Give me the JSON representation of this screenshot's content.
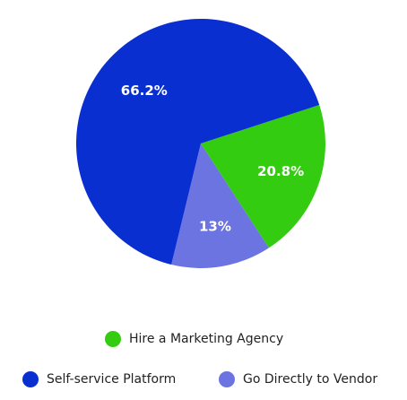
{
  "chart_data": {
    "type": "pie",
    "categories": [
      "Hire a Marketing Agency",
      "Go Directly to Vendor",
      "Self-service Platform"
    ],
    "values": [
      20.8,
      13,
      66.2
    ],
    "value_labels": [
      "20.8%",
      "13%",
      "66.2%"
    ],
    "colors": [
      "#33cc11",
      "#6b74e0",
      "#0a2fd1"
    ],
    "legend": "bottom"
  }
}
